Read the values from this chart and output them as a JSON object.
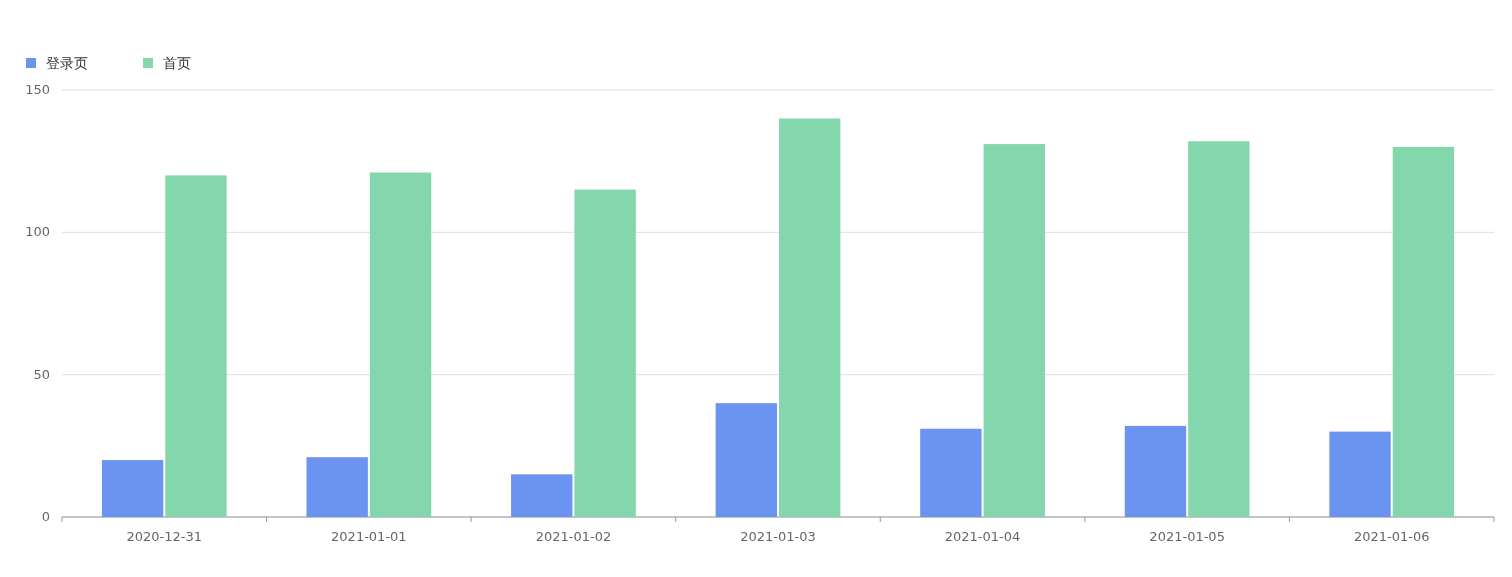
{
  "chart_data": {
    "type": "bar",
    "categories": [
      "2020-12-31",
      "2021-01-01",
      "2021-01-02",
      "2021-01-03",
      "2021-01-04",
      "2021-01-05",
      "2021-01-06"
    ],
    "series": [
      {
        "name": "登录页",
        "color": "#6b93f0",
        "values": [
          20,
          21,
          15,
          40,
          31,
          32,
          30
        ]
      },
      {
        "name": "首页",
        "color": "#84d6ad",
        "values": [
          120,
          121,
          115,
          140,
          131,
          132,
          130
        ]
      }
    ],
    "ylim": [
      0,
      150
    ],
    "yticks": [
      0,
      50,
      100,
      150
    ],
    "grid": "y",
    "legend": "top left"
  }
}
